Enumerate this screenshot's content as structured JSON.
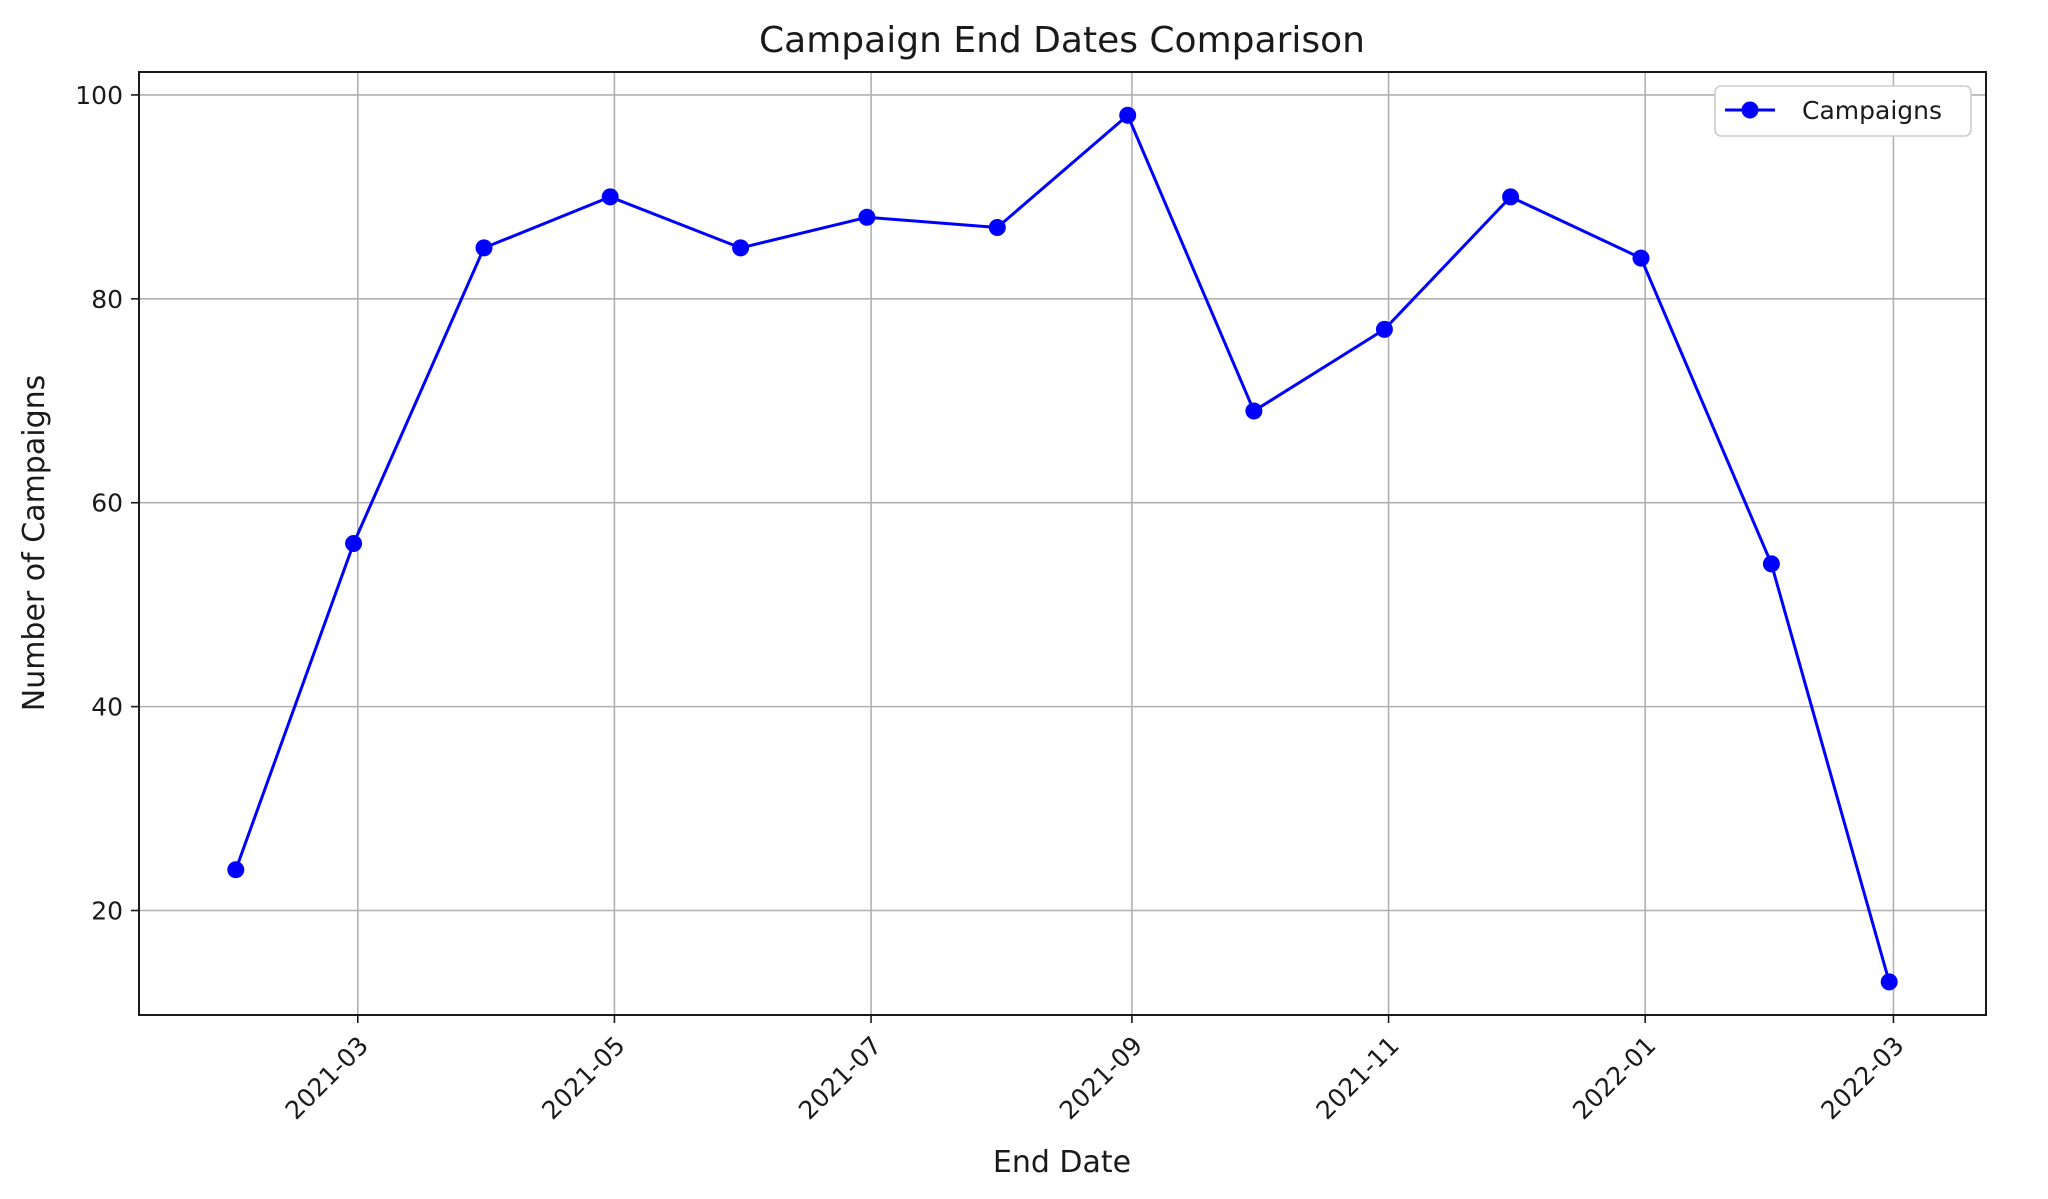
{
  "chart_data": {
    "type": "line",
    "title": "Campaign End Dates Comparison",
    "xlabel": "End Date",
    "ylabel": "Number of Campaigns",
    "x": [
      "2021-01-31",
      "2021-02-28",
      "2021-03-31",
      "2021-04-30",
      "2021-05-31",
      "2021-06-30",
      "2021-07-31",
      "2021-08-31",
      "2021-09-30",
      "2021-10-31",
      "2021-11-30",
      "2021-12-31",
      "2022-01-31",
      "2022-02-28"
    ],
    "series": [
      {
        "name": "Campaigns",
        "color": "#0000ff",
        "marker": "circle",
        "values": [
          24,
          56,
          85,
          90,
          85,
          88,
          87,
          98,
          69,
          77,
          90,
          84,
          54,
          13
        ]
      }
    ],
    "xticks": [
      "2021-03-01",
      "2021-05-01",
      "2021-07-01",
      "2021-09-01",
      "2021-11-01",
      "2022-01-01",
      "2022-03-01"
    ],
    "xtick_labels": [
      "2021-03",
      "2021-05",
      "2021-07",
      "2021-09",
      "2021-11",
      "2022-01",
      "2022-03"
    ],
    "xtick_rotation": 45,
    "yticks": [
      20,
      40,
      60,
      80,
      100
    ],
    "ylim": [
      9.75,
      102.25
    ],
    "xlim": [
      "2021-01-08",
      "2022-03-23"
    ],
    "grid": true,
    "legend": "top-right"
  }
}
